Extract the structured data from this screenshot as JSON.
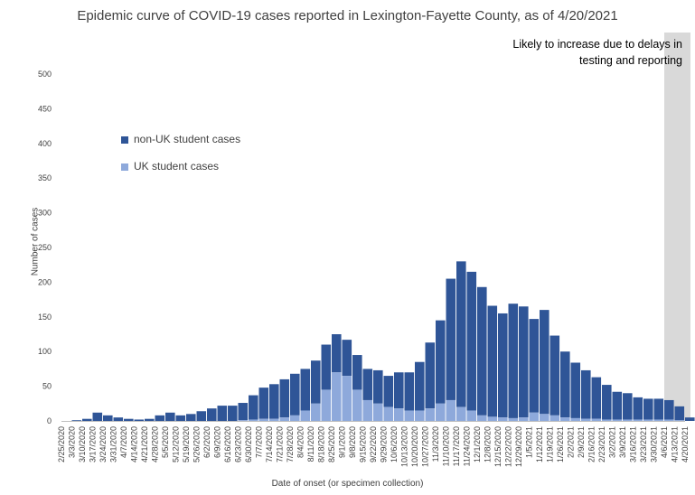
{
  "chart_data": {
    "type": "bar",
    "stacked": true,
    "title": "Epidemic curve of COVID-19 cases reported in Lexington-Fayette County, as of 4/20/2021",
    "xlabel": "Date of onset (or specimen collection)",
    "ylabel": "Number of cases",
    "ylim": [
      0,
      500
    ],
    "yticks": [
      0,
      50,
      100,
      150,
      200,
      250,
      300,
      350,
      400,
      450,
      500
    ],
    "grid": false,
    "legend_position": "upper-left",
    "annotation": "Likely to increase due to delays in testing and reporting",
    "annotation_shaded_range": [
      "4/6/2021",
      "4/20/2021"
    ],
    "x_start": "2/25/2020",
    "x_end": "4/20/2021",
    "x_tick_labels": [
      "2/25/2020",
      "3/3/2020",
      "3/10/2020",
      "3/17/2020",
      "3/24/2020",
      "3/31/2020",
      "4/7/2020",
      "4/14/2020",
      "4/21/2020",
      "4/28/2020",
      "5/5/2020",
      "5/12/2020",
      "5/19/2020",
      "5/26/2020",
      "6/2/2020",
      "6/9/2020",
      "6/16/2020",
      "6/23/2020",
      "6/30/2020",
      "7/7/2020",
      "7/14/2020",
      "7/21/2020",
      "7/28/2020",
      "8/4/2020",
      "8/11/2020",
      "8/18/2020",
      "8/25/2020",
      "9/1/2020",
      "9/8/2020",
      "9/15/2020",
      "9/22/2020",
      "9/29/2020",
      "10/6/2020",
      "10/13/2020",
      "10/20/2020",
      "10/27/2020",
      "11/3/2020",
      "11/10/2020",
      "11/17/2020",
      "11/24/2020",
      "12/1/2020",
      "12/8/2020",
      "12/15/2020",
      "12/22/2020",
      "12/29/2020",
      "1/5/2021",
      "1/12/2021",
      "1/19/2021",
      "1/26/2021",
      "2/2/2021",
      "2/9/2021",
      "2/16/2021",
      "2/23/2021",
      "3/2/2021",
      "3/9/2021",
      "3/16/2021",
      "3/23/2021",
      "3/30/2021",
      "4/6/2021",
      "4/13/2021",
      "4/20/2021"
    ],
    "weekly_x": [
      "2/25/2020",
      "3/3/2020",
      "3/10/2020",
      "3/17/2020",
      "3/24/2020",
      "3/31/2020",
      "4/7/2020",
      "4/14/2020",
      "4/21/2020",
      "4/28/2020",
      "5/5/2020",
      "5/12/2020",
      "5/19/2020",
      "5/26/2020",
      "6/2/2020",
      "6/9/2020",
      "6/16/2020",
      "6/23/2020",
      "6/30/2020",
      "7/7/2020",
      "7/14/2020",
      "7/21/2020",
      "7/28/2020",
      "8/4/2020",
      "8/11/2020",
      "8/18/2020",
      "8/25/2020",
      "9/1/2020",
      "9/8/2020",
      "9/15/2020",
      "9/22/2020",
      "9/29/2020",
      "10/6/2020",
      "10/13/2020",
      "10/20/2020",
      "10/27/2020",
      "11/3/2020",
      "11/10/2020",
      "11/17/2020",
      "11/24/2020",
      "12/1/2020",
      "12/8/2020",
      "12/15/2020",
      "12/22/2020",
      "12/29/2020",
      "1/5/2021",
      "1/12/2021",
      "1/19/2021",
      "1/26/2021",
      "2/2/2021",
      "2/9/2021",
      "2/16/2021",
      "2/23/2021",
      "3/2/2021",
      "3/9/2021",
      "3/16/2021",
      "3/23/2021",
      "3/30/2021",
      "4/6/2021",
      "4/13/2021",
      "4/20/2021"
    ],
    "series": [
      {
        "name": "non-UK student cases",
        "color": "#2F5597",
        "values": [
          0,
          1,
          3,
          12,
          8,
          5,
          3,
          2,
          3,
          8,
          12,
          8,
          10,
          14,
          18,
          22,
          22,
          25,
          35,
          45,
          50,
          55,
          60,
          60,
          62,
          65,
          55,
          52,
          50,
          45,
          48,
          45,
          52,
          55,
          70,
          95,
          120,
          175,
          210,
          200,
          185,
          160,
          150,
          165,
          160,
          135,
          150,
          115,
          95,
          80,
          70,
          60,
          50,
          40,
          38,
          32,
          30,
          30,
          28,
          20,
          5
        ]
      },
      {
        "name": "UK student cases",
        "color": "#8EA9DB",
        "values": [
          0,
          0,
          0,
          0,
          0,
          0,
          0,
          0,
          0,
          0,
          0,
          0,
          0,
          0,
          0,
          0,
          0,
          1,
          2,
          3,
          3,
          5,
          8,
          15,
          25,
          45,
          70,
          65,
          45,
          30,
          25,
          20,
          18,
          15,
          15,
          18,
          25,
          30,
          20,
          15,
          8,
          6,
          5,
          4,
          5,
          12,
          10,
          8,
          5,
          4,
          3,
          3,
          2,
          2,
          2,
          2,
          2,
          2,
          2,
          1,
          0
        ]
      }
    ]
  }
}
